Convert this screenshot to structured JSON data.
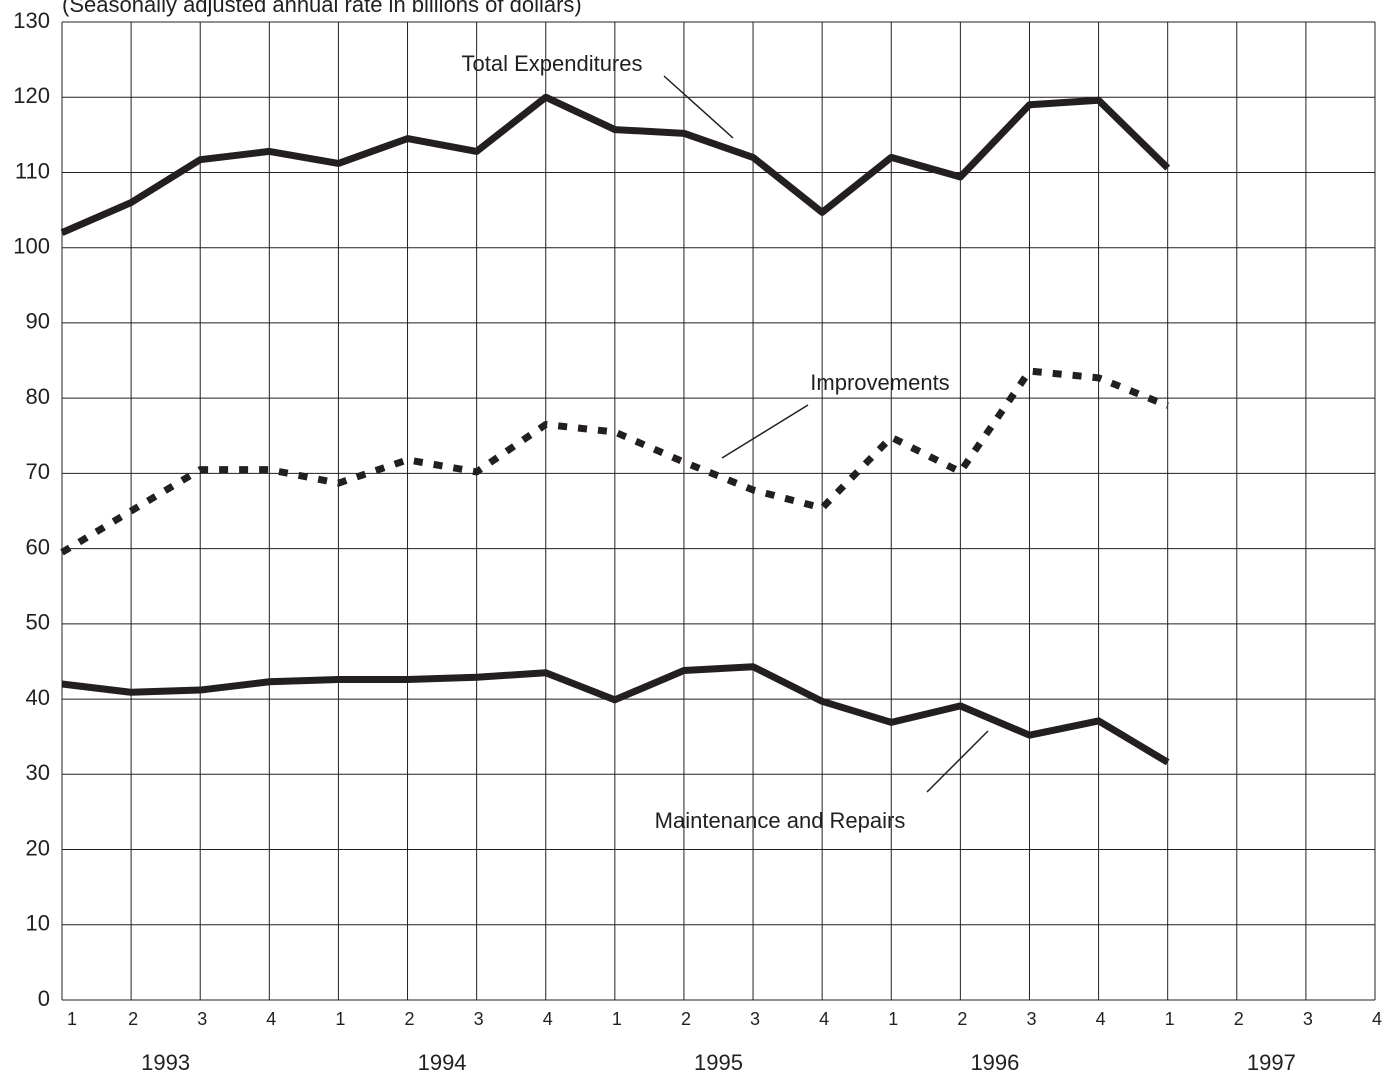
{
  "chart_data": {
    "type": "line",
    "subtitle": "(Seasonally adjusted annual rate in billions of dollars)",
    "categories": [
      "1",
      "2",
      "3",
      "4",
      "1",
      "2",
      "3",
      "4",
      "1",
      "2",
      "3",
      "4",
      "1",
      "2",
      "3",
      "4",
      "1",
      "2",
      "3",
      "4"
    ],
    "years": [
      "1993",
      "1994",
      "1995",
      "1996",
      "1997"
    ],
    "ylim": [
      0,
      130
    ],
    "yticks": [
      0,
      10,
      20,
      30,
      40,
      50,
      60,
      70,
      80,
      90,
      100,
      110,
      120,
      130
    ],
    "grid": true,
    "series": [
      {
        "name": "Total Expenditures",
        "color": "#231f20",
        "style": "solid",
        "values": [
          102,
          106,
          111.7,
          112.8,
          111.2,
          114.5,
          112.8,
          120,
          115.7,
          115.2,
          112,
          104.7,
          112,
          109.4,
          119,
          119.6,
          110.6,
          null,
          null,
          null
        ]
      },
      {
        "name": "Improvements",
        "color": "#231f20",
        "style": "dotted",
        "values": [
          59.5,
          65,
          70.5,
          70.5,
          68.7,
          71.8,
          70.2,
          76.5,
          75.5,
          71.5,
          67.8,
          65.4,
          74.8,
          70.2,
          83.6,
          82.7,
          79,
          null,
          null,
          null
        ]
      },
      {
        "name": "Maintenance and Repairs",
        "color": "#231f20",
        "style": "solid",
        "values": [
          42,
          40.9,
          41.2,
          42.3,
          42.6,
          42.6,
          42.9,
          43.5,
          39.9,
          43.8,
          44.3,
          39.7,
          36.9,
          39.1,
          35.2,
          37.1,
          31.6,
          null,
          null,
          null
        ]
      }
    ]
  }
}
